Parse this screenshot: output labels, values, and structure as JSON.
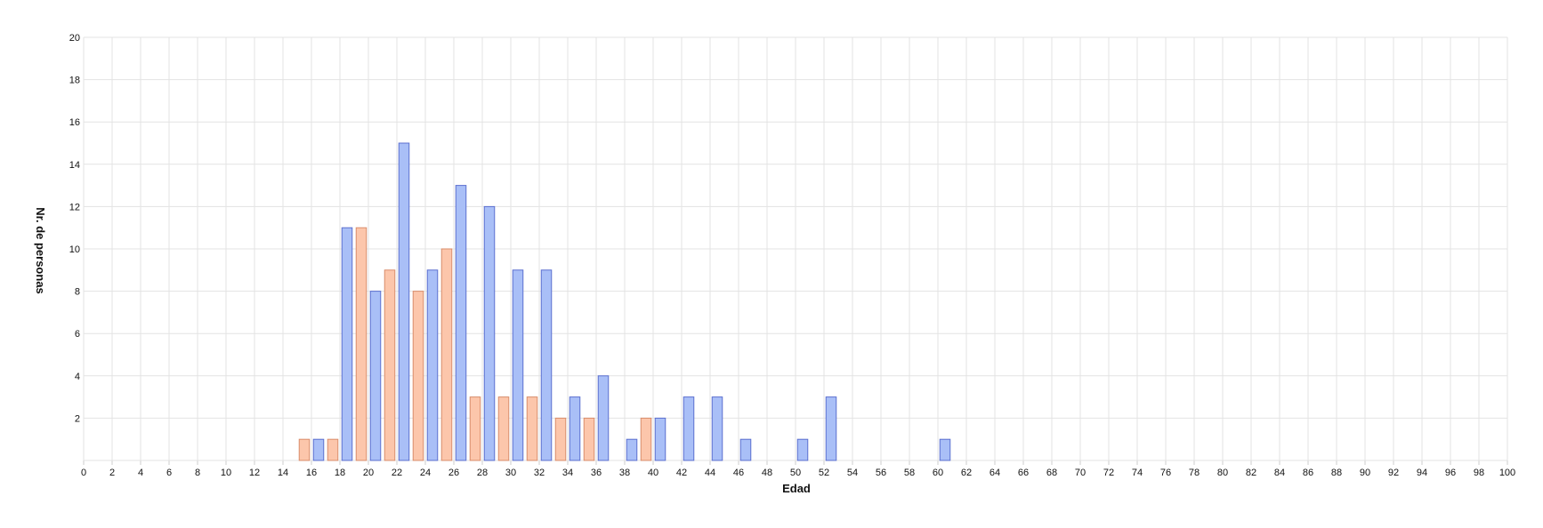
{
  "chart_data": {
    "type": "bar",
    "xlabel": "Edad",
    "ylabel": "Nr. de personas",
    "xlim": [
      0,
      100
    ],
    "ylim": [
      0,
      20
    ],
    "x_ticks": [
      0,
      2,
      4,
      6,
      8,
      10,
      12,
      14,
      16,
      18,
      20,
      22,
      24,
      26,
      28,
      30,
      32,
      34,
      36,
      38,
      40,
      42,
      44,
      46,
      48,
      50,
      52,
      54,
      56,
      58,
      60,
      62,
      64,
      66,
      68,
      70,
      72,
      74,
      76,
      78,
      80,
      82,
      84,
      86,
      88,
      90,
      92,
      94,
      96,
      98,
      100
    ],
    "y_ticks": [
      2,
      4,
      6,
      8,
      10,
      12,
      14,
      16,
      18,
      20
    ],
    "grid": true,
    "legend": "none",
    "series": [
      {
        "color": "#a9bff7",
        "stroke": "#5b6fcf",
        "x": [
          16.5,
          18.5,
          20.5,
          22.5,
          24.5,
          26.5,
          28.5,
          30.5,
          32.5,
          34.5,
          36.5,
          38.5,
          40.5,
          42.5,
          44.5,
          46.5,
          50.5,
          52.5,
          60.5
        ],
        "values": [
          1,
          11,
          8,
          15,
          9,
          13,
          12,
          9,
          9,
          3,
          4,
          1,
          2,
          3,
          3,
          1,
          1,
          3,
          1
        ]
      },
      {
        "color": "#fcc6ab",
        "stroke": "#d98d6b",
        "x": [
          15.5,
          17.5,
          19.5,
          21.5,
          23.5,
          25.5,
          27.5,
          29.5,
          31.5,
          33.5,
          35.5,
          39.5
        ],
        "values": [
          1,
          1,
          11,
          9,
          8,
          10,
          3,
          3,
          3,
          2,
          2,
          2
        ]
      }
    ]
  }
}
